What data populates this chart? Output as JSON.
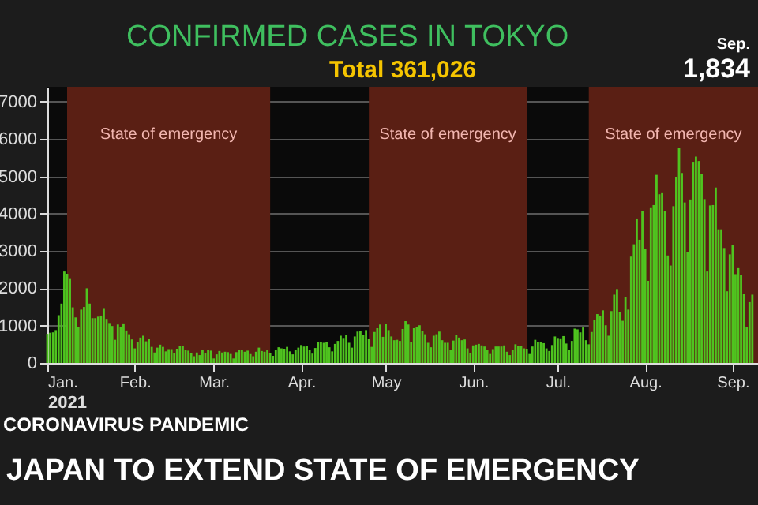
{
  "chart_data": {
    "type": "bar",
    "title": "CONFIRMED CASES IN TOKYO",
    "xlabel": "2021",
    "color": "#4fc41f",
    "annotations": [
      "Total 361,026",
      "Sep.",
      "1,834",
      "CORONAVIRUS PANDEMIC",
      "JAPAN TO EXTEND STATE OF EMERGENCY"
    ],
    "bands": [
      {
        "axis": "x",
        "from": "2021-01-08",
        "to": "2021-03-21",
        "label": "State of emergency",
        "color": "#5a1f14"
      },
      {
        "axis": "x",
        "from": "2021-04-25",
        "to": "2021-06-20",
        "label": "State of emergency",
        "color": "#5a1f14"
      },
      {
        "axis": "x",
        "from": "2021-07-12",
        "to": "2021-09-10",
        "label": "State of emergency",
        "color": "#5a1f14"
      }
    ],
    "xlim": [
      "2021-01-01",
      "2021-09-10"
    ],
    "xticks": [
      {
        "value": "2021-01-01",
        "label": "Jan."
      },
      {
        "value": "2021-02-01",
        "label": "Feb."
      },
      {
        "value": "2021-03-01",
        "label": "Mar."
      },
      {
        "value": "2021-04-01",
        "label": "Apr."
      },
      {
        "value": "2021-05-01",
        "label": "May"
      },
      {
        "value": "2021-06-01",
        "label": "Jun."
      },
      {
        "value": "2021-07-01",
        "label": "Jul."
      },
      {
        "value": "2021-08-01",
        "label": "Aug."
      },
      {
        "value": "2021-09-01",
        "label": "Sep."
      }
    ],
    "ylim": [
      0,
      7400
    ],
    "yticks": [
      0,
      1000,
      2000,
      3000,
      4000,
      5000,
      6000,
      7000
    ],
    "grid": "y",
    "x": [
      "2021-01-01",
      "2021-01-02",
      "2021-01-03",
      "2021-01-04",
      "2021-01-05",
      "2021-01-06",
      "2021-01-07",
      "2021-01-08",
      "2021-01-09",
      "2021-01-10",
      "2021-01-11",
      "2021-01-12",
      "2021-01-13",
      "2021-01-14",
      "2021-01-15",
      "2021-01-16",
      "2021-01-17",
      "2021-01-18",
      "2021-01-19",
      "2021-01-20",
      "2021-01-21",
      "2021-01-22",
      "2021-01-23",
      "2021-01-24",
      "2021-01-25",
      "2021-01-26",
      "2021-01-27",
      "2021-01-28",
      "2021-01-29",
      "2021-01-30",
      "2021-01-31",
      "2021-02-01",
      "2021-02-02",
      "2021-02-03",
      "2021-02-04",
      "2021-02-05",
      "2021-02-06",
      "2021-02-07",
      "2021-02-08",
      "2021-02-09",
      "2021-02-10",
      "2021-02-11",
      "2021-02-12",
      "2021-02-13",
      "2021-02-14",
      "2021-02-15",
      "2021-02-16",
      "2021-02-17",
      "2021-02-18",
      "2021-02-19",
      "2021-02-20",
      "2021-02-21",
      "2021-02-22",
      "2021-02-23",
      "2021-02-24",
      "2021-02-25",
      "2021-02-26",
      "2021-02-27",
      "2021-02-28",
      "2021-03-01",
      "2021-03-02",
      "2021-03-03",
      "2021-03-04",
      "2021-03-05",
      "2021-03-06",
      "2021-03-07",
      "2021-03-08",
      "2021-03-09",
      "2021-03-10",
      "2021-03-11",
      "2021-03-12",
      "2021-03-13",
      "2021-03-14",
      "2021-03-15",
      "2021-03-16",
      "2021-03-17",
      "2021-03-18",
      "2021-03-19",
      "2021-03-20",
      "2021-03-21",
      "2021-03-22",
      "2021-03-23",
      "2021-03-24",
      "2021-03-25",
      "2021-03-26",
      "2021-03-27",
      "2021-03-28",
      "2021-03-29",
      "2021-03-30",
      "2021-03-31",
      "2021-04-01",
      "2021-04-02",
      "2021-04-03",
      "2021-04-04",
      "2021-04-05",
      "2021-04-06",
      "2021-04-07",
      "2021-04-08",
      "2021-04-09",
      "2021-04-10",
      "2021-04-11",
      "2021-04-12",
      "2021-04-13",
      "2021-04-14",
      "2021-04-15",
      "2021-04-16",
      "2021-04-17",
      "2021-04-18",
      "2021-04-19",
      "2021-04-20",
      "2021-04-21",
      "2021-04-22",
      "2021-04-23",
      "2021-04-24",
      "2021-04-25",
      "2021-04-26",
      "2021-04-27",
      "2021-04-28",
      "2021-04-29",
      "2021-04-30",
      "2021-05-01",
      "2021-05-02",
      "2021-05-03",
      "2021-05-04",
      "2021-05-05",
      "2021-05-06",
      "2021-05-07",
      "2021-05-08",
      "2021-05-09",
      "2021-05-10",
      "2021-05-11",
      "2021-05-12",
      "2021-05-13",
      "2021-05-14",
      "2021-05-15",
      "2021-05-16",
      "2021-05-17",
      "2021-05-18",
      "2021-05-19",
      "2021-05-20",
      "2021-05-21",
      "2021-05-22",
      "2021-05-23",
      "2021-05-24",
      "2021-05-25",
      "2021-05-26",
      "2021-05-27",
      "2021-05-28",
      "2021-05-29",
      "2021-05-30",
      "2021-05-31",
      "2021-06-01",
      "2021-06-02",
      "2021-06-03",
      "2021-06-04",
      "2021-06-05",
      "2021-06-06",
      "2021-06-07",
      "2021-06-08",
      "2021-06-09",
      "2021-06-10",
      "2021-06-11",
      "2021-06-12",
      "2021-06-13",
      "2021-06-14",
      "2021-06-15",
      "2021-06-16",
      "2021-06-17",
      "2021-06-18",
      "2021-06-19",
      "2021-06-20",
      "2021-06-21",
      "2021-06-22",
      "2021-06-23",
      "2021-06-24",
      "2021-06-25",
      "2021-06-26",
      "2021-06-27",
      "2021-06-28",
      "2021-06-29",
      "2021-06-30",
      "2021-07-01",
      "2021-07-02",
      "2021-07-03",
      "2021-07-04",
      "2021-07-05",
      "2021-07-06",
      "2021-07-07",
      "2021-07-08",
      "2021-07-09",
      "2021-07-10",
      "2021-07-11",
      "2021-07-12",
      "2021-07-13",
      "2021-07-14",
      "2021-07-15",
      "2021-07-16",
      "2021-07-17",
      "2021-07-18",
      "2021-07-19",
      "2021-07-20",
      "2021-07-21",
      "2021-07-22",
      "2021-07-23",
      "2021-07-24",
      "2021-07-25",
      "2021-07-26",
      "2021-07-27",
      "2021-07-28",
      "2021-07-29",
      "2021-07-30",
      "2021-07-31",
      "2021-08-01",
      "2021-08-02",
      "2021-08-03",
      "2021-08-04",
      "2021-08-05",
      "2021-08-06",
      "2021-08-07",
      "2021-08-08",
      "2021-08-09",
      "2021-08-10",
      "2021-08-11",
      "2021-08-12",
      "2021-08-13",
      "2021-08-14",
      "2021-08-15",
      "2021-08-16",
      "2021-08-17",
      "2021-08-18",
      "2021-08-19",
      "2021-08-20",
      "2021-08-21",
      "2021-08-22",
      "2021-08-23",
      "2021-08-24",
      "2021-08-25",
      "2021-08-26",
      "2021-08-27",
      "2021-08-28",
      "2021-08-29",
      "2021-08-30",
      "2021-08-31",
      "2021-09-01",
      "2021-09-02",
      "2021-09-03",
      "2021-09-04",
      "2021-09-05",
      "2021-09-06",
      "2021-09-07",
      "2021-09-08"
    ],
    "values": [
      780,
      810,
      820,
      880,
      1280,
      1590,
      2450,
      2390,
      2270,
      1490,
      1220,
      970,
      1430,
      1500,
      2000,
      1590,
      1200,
      1200,
      1240,
      1270,
      1470,
      1180,
      1070,
      990,
      620,
      1030,
      970,
      1060,
      870,
      770,
      630,
      390,
      560,
      680,
      730,
      580,
      640,
      430,
      280,
      410,
      490,
      430,
      310,
      370,
      370,
      270,
      380,
      450,
      450,
      350,
      330,
      270,
      180,
      280,
      210,
      340,
      270,
      340,
      330,
      120,
      230,
      320,
      280,
      300,
      290,
      240,
      120,
      290,
      340,
      340,
      300,
      330,
      240,
      180,
      300,
      410,
      320,
      300,
      340,
      260,
      190,
      340,
      420,
      390,
      380,
      430,
      310,
      230,
      360,
      410,
      480,
      440,
      450,
      360,
      250,
      400,
      560,
      550,
      540,
      570,
      420,
      310,
      510,
      590,
      730,
      670,
      760,
      540,
      410,
      710,
      840,
      860,
      760,
      880,
      640,
      430,
      830,
      930,
      1030,
      700,
      1050,
      880,
      710,
      610,
      620,
      590,
      910,
      1120,
      1030,
      570,
      930,
      970,
      1010,
      850,
      770,
      540,
      420,
      730,
      770,
      840,
      610,
      540,
      540,
      340,
      600,
      740,
      680,
      610,
      630,
      390,
      260,
      470,
      490,
      510,
      470,
      440,
      350,
      240,
      370,
      440,
      440,
      440,
      470,
      300,
      210,
      340,
      500,
      450,
      450,
      390,
      380,
      240,
      440,
      620,
      570,
      560,
      530,
      390,
      320,
      480,
      710,
      670,
      660,
      720,
      520,
      340,
      590,
      920,
      900,
      820,
      950,
      610,
      500,
      830,
      1150,
      1310,
      1270,
      1410,
      1010,
      730,
      1390,
      1830,
      1980,
      1360,
      1130,
      1760,
      1430,
      2850,
      3180,
      3870,
      3300,
      4060,
      3060,
      2200,
      4170,
      4230,
      5040,
      4520,
      4570,
      4070,
      2880,
      2610,
      4200,
      4990,
      5770,
      5090,
      4300,
      2960,
      4380,
      5390,
      5530,
      5410,
      5070,
      4390,
      2450,
      4220,
      4230,
      4700,
      3580,
      3580,
      3080,
      1920,
      2910,
      3170,
      2380,
      2540,
      2360,
      1850,
      970,
      1630,
      1830
    ]
  }
}
